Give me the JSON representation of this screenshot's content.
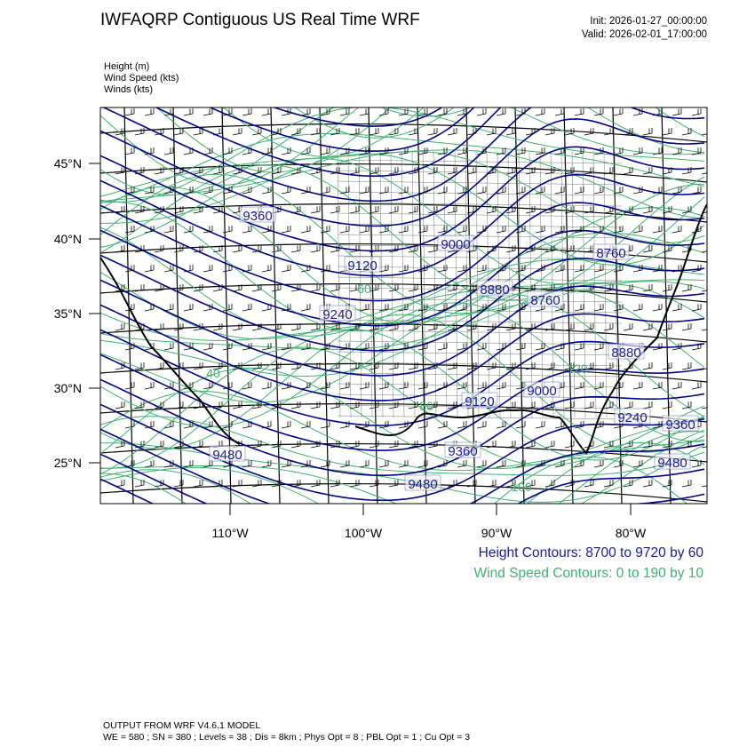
{
  "header": {
    "title": "IWFAQRP Contiguous US Real Time WRF",
    "init": "Init: 2026-01-27_00:00:00",
    "valid": "Valid: 2026-02-01_17:00:00"
  },
  "fields": [
    "Height   (m)",
    "Wind Speed   (kts)",
    "Winds   (kts)"
  ],
  "map": {
    "lat_labels": [
      "45°N",
      "40°N",
      "35°N",
      "30°N",
      "25°N"
    ],
    "lon_labels": [
      "110°W",
      "100°W",
      "90°W",
      "80°W"
    ],
    "height_labels": [
      "9360",
      "9000",
      "9120",
      "8880",
      "8760",
      "8760",
      "9240",
      "8880",
      "9000",
      "9120",
      "9240",
      "9360",
      "9480",
      "9360",
      "9480",
      "9480"
    ],
    "wind_labels": [
      "120",
      "100",
      "80",
      "60",
      "40"
    ],
    "colors": {
      "height": "#00008b",
      "wind": "#3cb371",
      "borders": "#000000"
    }
  },
  "contour_info": {
    "height": "Height Contours: 8700 to 9720 by 60",
    "wind": "Wind Speed Contours: 0 to 190 by 10",
    "height_color": "#1a1a9c",
    "wind_color": "#3cb371"
  },
  "footer": {
    "line1": "OUTPUT FROM WRF V4.6.1 MODEL",
    "line2": "WE = 580 ; SN = 380 ; Levels = 38 ; Dis = 8km ; Phys Opt = 8 ; PBL Opt = 1 ; Cu Opt = 3"
  }
}
